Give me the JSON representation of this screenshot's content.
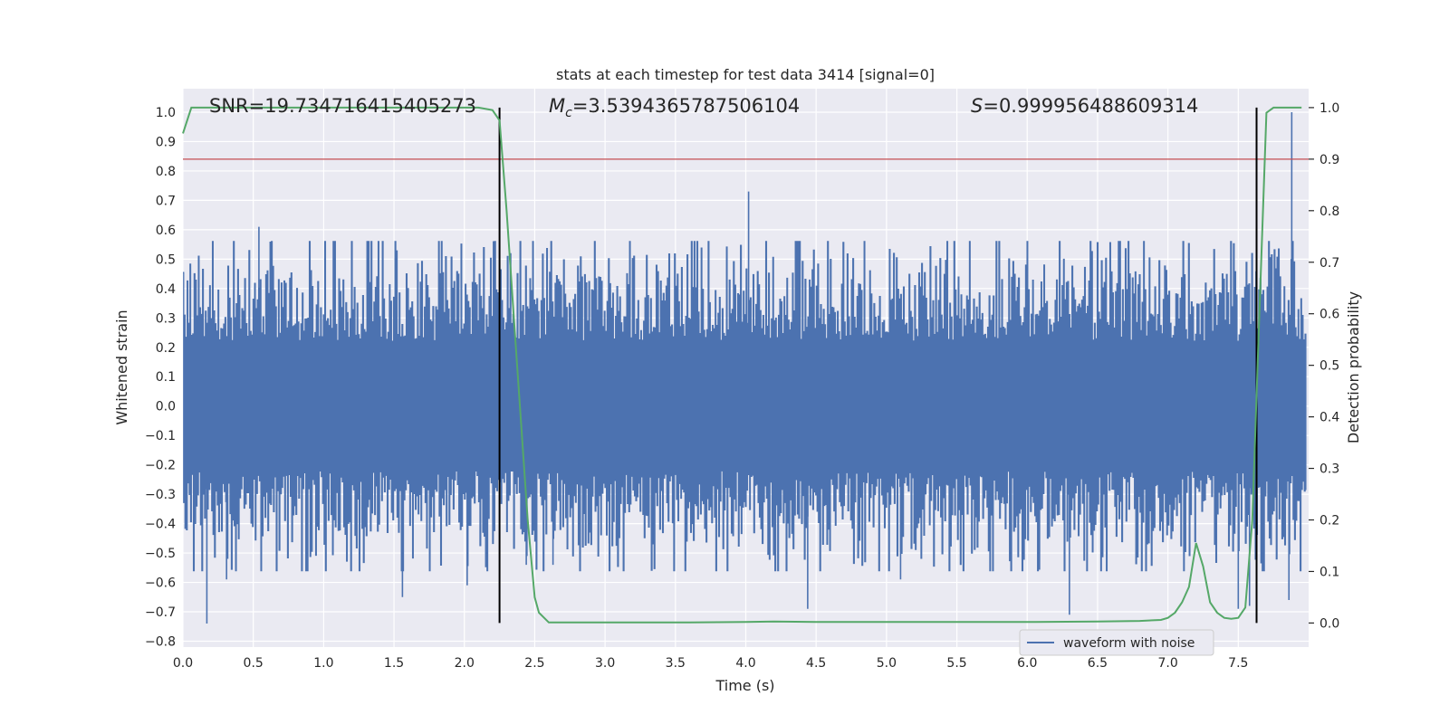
{
  "chart_data": {
    "type": "line",
    "title": "stats at each timestep for test data 3414 [signal=0]",
    "xlabel": "Time (s)",
    "ylabel": "Whitened strain",
    "y2label": "Detection probability",
    "xlim": [
      0.0,
      8.0
    ],
    "ylim": [
      -0.82,
      1.08
    ],
    "y2lim": [
      -0.0467,
      1.0367
    ],
    "x_ticks": [
      0.0,
      0.5,
      1.0,
      1.5,
      2.0,
      2.5,
      3.0,
      3.5,
      4.0,
      4.5,
      5.0,
      5.5,
      6.0,
      6.5,
      7.0,
      7.5
    ],
    "x_tick_labels": [
      "0.0",
      "0.5",
      "1.0",
      "1.5",
      "2.0",
      "2.5",
      "3.0",
      "3.5",
      "4.0",
      "4.5",
      "5.0",
      "5.5",
      "6.0",
      "6.5",
      "7.0",
      "7.5"
    ],
    "y_ticks": [
      -0.8,
      -0.7,
      -0.6,
      -0.5,
      -0.4,
      -0.3,
      -0.2,
      -0.1,
      0.0,
      0.1,
      0.2,
      0.3,
      0.4,
      0.5,
      0.6,
      0.7,
      0.8,
      0.9,
      1.0
    ],
    "y_tick_labels": [
      "−0.8",
      "−0.7",
      "−0.6",
      "−0.5",
      "−0.4",
      "−0.3",
      "−0.2",
      "−0.1",
      "0.0",
      "0.1",
      "0.2",
      "0.3",
      "0.4",
      "0.5",
      "0.6",
      "0.7",
      "0.8",
      "0.9",
      "1.0"
    ],
    "y2_ticks": [
      0.0,
      0.1,
      0.2,
      0.3,
      0.4,
      0.5,
      0.6,
      0.7,
      0.8,
      0.9,
      1.0
    ],
    "y2_tick_labels": [
      "0.0",
      "0.1",
      "0.2",
      "0.3",
      "0.4",
      "0.5",
      "0.6",
      "0.7",
      "0.8",
      "0.9",
      "1.0"
    ],
    "grid": true,
    "legend": {
      "placement": "lower-right",
      "entries": [
        "waveform with noise"
      ]
    },
    "annotations": {
      "snr_label": "SNR=19.734716415405273",
      "mc_symbol": "M",
      "mc_subscript": "c",
      "mc_value": "=3.5394365787506104",
      "s_symbol": "S",
      "s_value": "=0.999956488609314"
    },
    "waveform": {
      "name": "waveform with noise",
      "color": "#4c72b0",
      "typical_range": [
        -0.38,
        0.38
      ],
      "peaks": [
        {
          "x": 0.17,
          "y": -0.74
        },
        {
          "x": 0.31,
          "y": -0.59
        },
        {
          "x": 0.54,
          "y": 0.61
        },
        {
          "x": 1.56,
          "y": -0.65
        },
        {
          "x": 2.02,
          "y": -0.61
        },
        {
          "x": 2.44,
          "y": -0.54
        },
        {
          "x": 2.63,
          "y": -0.54
        },
        {
          "x": 4.02,
          "y": 0.73
        },
        {
          "x": 4.44,
          "y": -0.69
        },
        {
          "x": 5.1,
          "y": -0.59
        },
        {
          "x": 6.3,
          "y": -0.71
        },
        {
          "x": 7.5,
          "y": -0.69
        },
        {
          "x": 7.58,
          "y": -0.68
        },
        {
          "x": 7.88,
          "y": 1.0
        },
        {
          "x": 7.86,
          "y": -0.66
        }
      ]
    },
    "detection_probability": {
      "color": "#55a868",
      "x": [
        0.0,
        0.06,
        0.2,
        0.5,
        1.0,
        1.5,
        2.0,
        2.1,
        2.2,
        2.25,
        2.3,
        2.35,
        2.4,
        2.45,
        2.5,
        2.53,
        2.6,
        3.0,
        3.5,
        4.0,
        4.2,
        4.5,
        5.0,
        5.5,
        6.0,
        6.5,
        6.8,
        6.95,
        7.0,
        7.05,
        7.1,
        7.15,
        7.2,
        7.25,
        7.3,
        7.35,
        7.4,
        7.45,
        7.5,
        7.55,
        7.6,
        7.65,
        7.7,
        7.75,
        7.8,
        7.85,
        7.95
      ],
      "y": [
        0.95,
        1.0,
        1.0,
        1.0,
        1.0,
        1.0,
        1.0,
        1.0,
        0.995,
        0.975,
        0.8,
        0.6,
        0.4,
        0.2,
        0.05,
        0.02,
        0.001,
        0.001,
        0.001,
        0.002,
        0.003,
        0.002,
        0.002,
        0.002,
        0.002,
        0.003,
        0.004,
        0.006,
        0.01,
        0.02,
        0.04,
        0.07,
        0.155,
        0.11,
        0.04,
        0.02,
        0.01,
        0.008,
        0.01,
        0.03,
        0.2,
        0.6,
        0.99,
        1.0,
        1.0,
        1.0,
        1.0
      ]
    },
    "threshold": {
      "color": "#c44e52",
      "y2": 0.9
    },
    "event_lines": {
      "color": "#000000",
      "x": [
        2.25,
        7.63
      ],
      "y2_range": [
        0.0,
        1.0
      ]
    }
  }
}
